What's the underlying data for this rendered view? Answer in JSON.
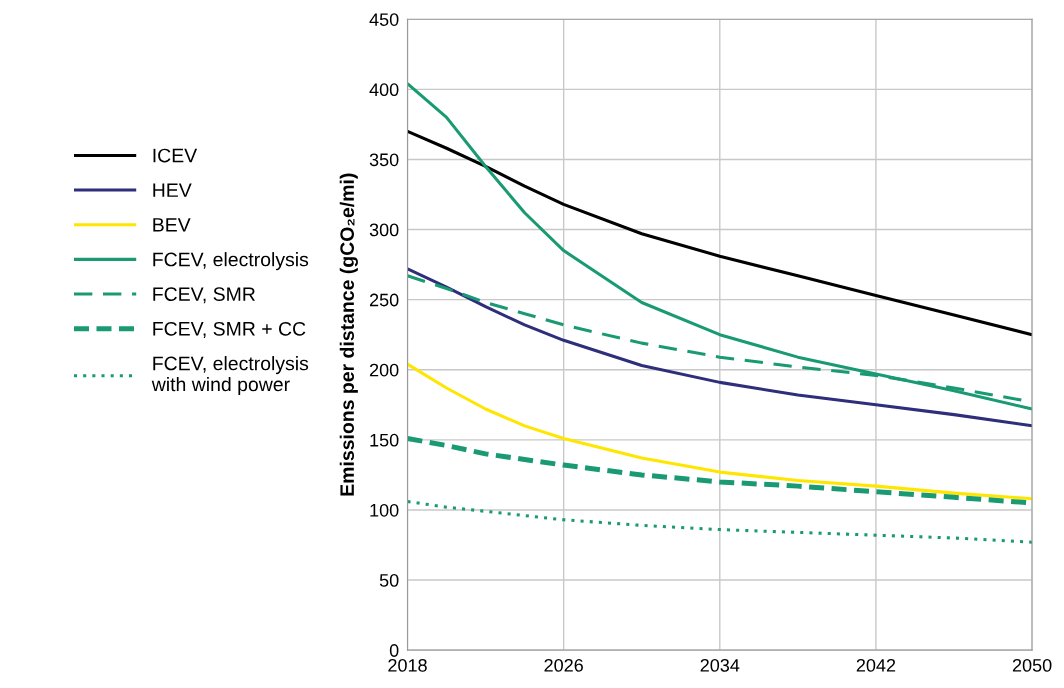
{
  "chart_data": {
    "type": "line",
    "ylabel": "Emissions per distance (gCO₂e/mi)",
    "x": [
      2018,
      2020,
      2022,
      2024,
      2026,
      2030,
      2034,
      2038,
      2042,
      2046,
      2050
    ],
    "xlim": [
      2018,
      2050
    ],
    "xticks": [
      2018,
      2026,
      2034,
      2042,
      2050
    ],
    "ylim": [
      0,
      450
    ],
    "yticks": [
      0,
      50,
      100,
      150,
      200,
      250,
      300,
      350,
      400,
      450
    ],
    "grid": true,
    "legend": "left",
    "marker": "none",
    "series": [
      {
        "name": "ICEV",
        "color": "#000000",
        "line_style": "solid",
        "values": [
          370,
          358,
          345,
          331,
          318,
          297,
          281,
          267,
          253,
          239,
          225
        ]
      },
      {
        "name": "HEV",
        "color": "#2e2e7a",
        "line_style": "solid",
        "values": [
          272,
          259,
          245,
          232,
          221,
          203,
          191,
          182,
          175,
          168,
          160
        ]
      },
      {
        "name": "BEV",
        "color": "#ffe600",
        "line_style": "solid",
        "values": [
          204,
          187,
          172,
          160,
          151,
          137,
          127,
          121,
          117,
          112,
          108
        ]
      },
      {
        "name": "FCEV, electrolysis",
        "color": "#1a9a73",
        "line_style": "solid",
        "values": [
          404,
          380,
          345,
          312,
          285,
          248,
          225,
          209,
          197,
          185,
          172
        ]
      },
      {
        "name": "FCEV, SMR",
        "color": "#1a9a73",
        "line_style": "dashed",
        "values": [
          267,
          258,
          248,
          240,
          232,
          219,
          209,
          202,
          196,
          187,
          177
        ]
      },
      {
        "name": "FCEV, SMR + CC",
        "color": "#1a9a73",
        "line_style": "dashed",
        "values": [
          151,
          146,
          140,
          136,
          132,
          125,
          120,
          117,
          113,
          109,
          105
        ]
      },
      {
        "name": "FCEV, electrolysis\nwith wind power",
        "color": "#1a9a73",
        "line_style": "dotted",
        "values": [
          106,
          102,
          99,
          96,
          93,
          89,
          86,
          84,
          82,
          80,
          77
        ]
      }
    ]
  }
}
